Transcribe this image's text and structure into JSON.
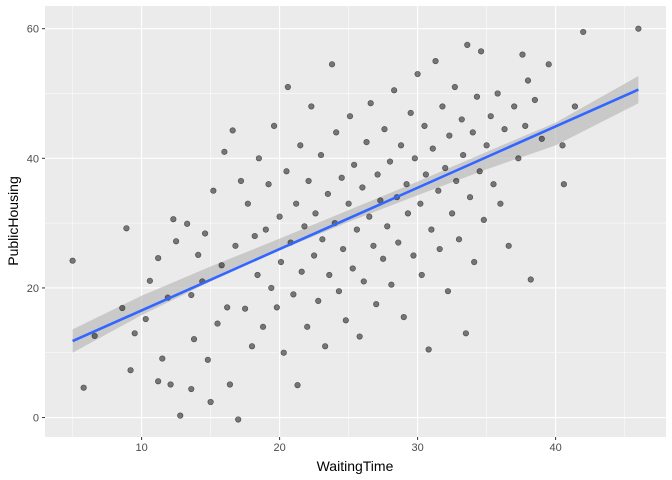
{
  "chart_data": {
    "type": "scatter",
    "title": "",
    "xlabel": "WaitingTime",
    "ylabel": "PublicHousing",
    "xlim": [
      3.0,
      48.0
    ],
    "ylim": [
      -3.0,
      63.5
    ],
    "x_ticks": [
      10,
      20,
      30,
      40
    ],
    "y_ticks": [
      0,
      20,
      40,
      60
    ],
    "grid": true,
    "legend": "none",
    "colors": {
      "panel_background": "#ebebeb",
      "grid_major": "#ffffff",
      "points": "#000000",
      "trend_line": "#3366ff",
      "confidence_band": "#b3b3b3"
    },
    "trend_line": {
      "x": [
        5.0,
        46.0
      ],
      "y": [
        11.8,
        50.6
      ]
    },
    "confidence_band": {
      "x": [
        5.0,
        10.0,
        15.0,
        20.0,
        25.0,
        30.0,
        35.0,
        40.0,
        46.0
      ],
      "lower": [
        10.0,
        15.8,
        21.0,
        25.8,
        30.2,
        34.3,
        38.3,
        42.0,
        48.5
      ],
      "upper": [
        13.6,
        18.8,
        23.3,
        27.6,
        32.0,
        36.4,
        41.0,
        45.5,
        52.7
      ]
    },
    "series": [
      {
        "points": [
          [
            5.0,
            24.2
          ],
          [
            5.8,
            4.6
          ],
          [
            6.6,
            12.6
          ],
          [
            8.6,
            16.9
          ],
          [
            8.9,
            29.2
          ],
          [
            9.2,
            7.3
          ],
          [
            9.5,
            13.0
          ],
          [
            10.3,
            15.2
          ],
          [
            10.6,
            21.1
          ],
          [
            11.2,
            5.6
          ],
          [
            11.5,
            9.1
          ],
          [
            11.2,
            24.6
          ],
          [
            11.9,
            18.5
          ],
          [
            12.1,
            5.1
          ],
          [
            12.3,
            30.6
          ],
          [
            12.5,
            27.2
          ],
          [
            12.8,
            0.3
          ],
          [
            13.3,
            29.9
          ],
          [
            13.6,
            4.4
          ],
          [
            13.6,
            18.9
          ],
          [
            13.8,
            12.1
          ],
          [
            14.1,
            25.1
          ],
          [
            14.4,
            21.0
          ],
          [
            14.6,
            28.4
          ],
          [
            14.8,
            8.9
          ],
          [
            15.0,
            2.4
          ],
          [
            15.2,
            35.0
          ],
          [
            15.5,
            14.5
          ],
          [
            15.8,
            23.5
          ],
          [
            16.0,
            41.0
          ],
          [
            16.2,
            17.0
          ],
          [
            16.4,
            5.1
          ],
          [
            16.6,
            44.3
          ],
          [
            16.8,
            26.5
          ],
          [
            17.0,
            -0.3
          ],
          [
            17.2,
            36.5
          ],
          [
            17.5,
            16.8
          ],
          [
            17.7,
            33.0
          ],
          [
            18.0,
            11.0
          ],
          [
            18.2,
            28.0
          ],
          [
            18.4,
            22.0
          ],
          [
            18.5,
            40.0
          ],
          [
            18.8,
            14.0
          ],
          [
            19.0,
            29.0
          ],
          [
            19.2,
            36.0
          ],
          [
            19.4,
            20.0
          ],
          [
            19.6,
            45.0
          ],
          [
            19.8,
            17.0
          ],
          [
            20.0,
            31.0
          ],
          [
            20.1,
            24.0
          ],
          [
            20.3,
            10.0
          ],
          [
            20.5,
            38.0
          ],
          [
            20.6,
            51.0
          ],
          [
            20.8,
            27.0
          ],
          [
            21.0,
            19.0
          ],
          [
            21.2,
            33.0
          ],
          [
            21.3,
            5.0
          ],
          [
            21.5,
            42.0
          ],
          [
            21.6,
            22.5
          ],
          [
            21.8,
            29.5
          ],
          [
            22.0,
            14.0
          ],
          [
            22.1,
            36.5
          ],
          [
            22.3,
            48.0
          ],
          [
            22.5,
            25.0
          ],
          [
            22.6,
            31.5
          ],
          [
            22.8,
            18.0
          ],
          [
            23.0,
            40.5
          ],
          [
            23.1,
            27.5
          ],
          [
            23.3,
            11.0
          ],
          [
            23.5,
            34.5
          ],
          [
            23.6,
            22.0
          ],
          [
            23.8,
            54.5
          ],
          [
            24.0,
            30.0
          ],
          [
            24.1,
            44.0
          ],
          [
            24.3,
            19.5
          ],
          [
            24.5,
            37.0
          ],
          [
            24.6,
            26.0
          ],
          [
            24.8,
            15.0
          ],
          [
            25.0,
            33.0
          ],
          [
            25.1,
            46.5
          ],
          [
            25.3,
            23.0
          ],
          [
            25.4,
            39.0
          ],
          [
            25.6,
            29.0
          ],
          [
            25.8,
            12.5
          ],
          [
            26.0,
            35.5
          ],
          [
            26.1,
            21.0
          ],
          [
            26.3,
            42.5
          ],
          [
            26.5,
            31.0
          ],
          [
            26.6,
            48.5
          ],
          [
            26.8,
            26.5
          ],
          [
            27.0,
            17.5
          ],
          [
            27.1,
            37.5
          ],
          [
            27.3,
            33.5
          ],
          [
            27.5,
            24.5
          ],
          [
            27.6,
            44.5
          ],
          [
            27.8,
            29.5
          ],
          [
            28.0,
            39.5
          ],
          [
            28.1,
            20.5
          ],
          [
            28.3,
            50.5
          ],
          [
            28.5,
            34.0
          ],
          [
            28.6,
            27.0
          ],
          [
            28.8,
            42.0
          ],
          [
            29.0,
            15.5
          ],
          [
            29.2,
            36.0
          ],
          [
            29.3,
            31.5
          ],
          [
            29.5,
            47.0
          ],
          [
            29.7,
            25.0
          ],
          [
            29.8,
            40.0
          ],
          [
            30.0,
            53.0
          ],
          [
            30.2,
            33.0
          ],
          [
            30.3,
            22.0
          ],
          [
            30.5,
            45.0
          ],
          [
            30.6,
            37.5
          ],
          [
            30.8,
            10.5
          ],
          [
            31.0,
            29.0
          ],
          [
            31.1,
            41.5
          ],
          [
            31.3,
            55.0
          ],
          [
            31.5,
            35.0
          ],
          [
            31.6,
            26.0
          ],
          [
            31.8,
            48.0
          ],
          [
            32.0,
            38.5
          ],
          [
            32.2,
            19.5
          ],
          [
            32.3,
            43.5
          ],
          [
            32.5,
            31.5
          ],
          [
            32.7,
            51.0
          ],
          [
            32.8,
            36.5
          ],
          [
            33.0,
            27.5
          ],
          [
            33.2,
            46.0
          ],
          [
            33.3,
            40.5
          ],
          [
            33.5,
            13.0
          ],
          [
            33.6,
            57.5
          ],
          [
            33.8,
            34.0
          ],
          [
            34.0,
            44.0
          ],
          [
            34.1,
            24.0
          ],
          [
            34.3,
            49.5
          ],
          [
            34.5,
            38.0
          ],
          [
            34.6,
            56.5
          ],
          [
            34.8,
            30.5
          ],
          [
            35.0,
            42.0
          ],
          [
            35.3,
            46.5
          ],
          [
            35.5,
            36.0
          ],
          [
            35.8,
            50.0
          ],
          [
            36.0,
            33.0
          ],
          [
            36.3,
            44.5
          ],
          [
            36.6,
            26.5
          ],
          [
            37.0,
            48.0
          ],
          [
            37.3,
            40.0
          ],
          [
            37.6,
            56.0
          ],
          [
            37.8,
            45.0
          ],
          [
            38.0,
            52.0
          ],
          [
            38.2,
            21.3
          ],
          [
            38.5,
            49.0
          ],
          [
            39.0,
            43.0
          ],
          [
            39.5,
            54.5
          ],
          [
            40.5,
            42.0
          ],
          [
            40.6,
            36.0
          ],
          [
            41.4,
            48.0
          ],
          [
            42.0,
            59.5
          ],
          [
            46.0,
            60.0
          ]
        ]
      }
    ]
  }
}
